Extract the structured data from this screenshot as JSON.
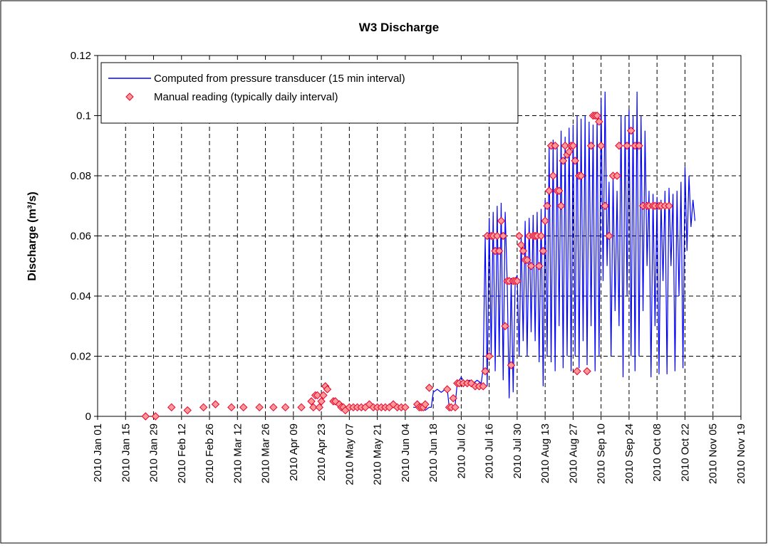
{
  "chart_data": {
    "type": "line",
    "title": "W3 Discharge",
    "y_label": "Discharge (m³/s)",
    "xlim": [
      "2010-01-01",
      "2010-11-19"
    ],
    "xticks": [
      {
        "value": "2010-01-01",
        "label": "2010 Jan 01"
      },
      {
        "value": "2010-01-15",
        "label": "2010 Jan 15"
      },
      {
        "value": "2010-01-29",
        "label": "2010 Jan 29"
      },
      {
        "value": "2010-02-12",
        "label": "2010 Feb 12"
      },
      {
        "value": "2010-02-26",
        "label": "2010 Feb 26"
      },
      {
        "value": "2010-03-12",
        "label": "2010 Mar 12"
      },
      {
        "value": "2010-03-26",
        "label": "2010 Mar 26"
      },
      {
        "value": "2010-04-09",
        "label": "2010 Apr 09"
      },
      {
        "value": "2010-04-23",
        "label": "2010 Apr 23"
      },
      {
        "value": "2010-05-07",
        "label": "2010 May 07"
      },
      {
        "value": "2010-05-21",
        "label": "2010 May 21"
      },
      {
        "value": "2010-06-04",
        "label": "2010 Jun 04"
      },
      {
        "value": "2010-06-18",
        "label": "2010 Jun 18"
      },
      {
        "value": "2010-07-02",
        "label": "2010 Jul 02"
      },
      {
        "value": "2010-07-16",
        "label": "2010 Jul 16"
      },
      {
        "value": "2010-07-30",
        "label": "2010 Jul 30"
      },
      {
        "value": "2010-08-13",
        "label": "2010 Aug 13"
      },
      {
        "value": "2010-08-27",
        "label": "2010 Aug 27"
      },
      {
        "value": "2010-09-10",
        "label": "2010 Sep 10"
      },
      {
        "value": "2010-09-24",
        "label": "2010 Sep 24"
      },
      {
        "value": "2010-10-08",
        "label": "2010 Oct 08"
      },
      {
        "value": "2010-10-22",
        "label": "2010 Oct 22"
      },
      {
        "value": "2010-11-05",
        "label": "2010 Nov 05"
      },
      {
        "value": "2010-11-19",
        "label": "2010 Nov 19"
      }
    ],
    "ylim": [
      0,
      0.12
    ],
    "yticks": [
      0,
      0.02,
      0.04,
      0.06,
      0.08,
      0.1,
      0.12
    ],
    "grid": true,
    "legend": "top-left",
    "series": [
      {
        "name": "Computed from pressure transducer (15 min interval)",
        "mode": "line",
        "color": "#0000ff",
        "x": [
          "2010-06-08",
          "2010-06-10",
          "2010-06-12",
          "2010-06-14",
          "2010-06-16",
          "2010-06-17",
          "2010-06-18",
          "2010-06-20",
          "2010-06-22",
          "2010-06-24",
          "2010-06-25",
          "2010-06-26",
          "2010-06-28",
          "2010-06-29",
          "2010-06-30",
          "2010-07-02",
          "2010-07-04",
          "2010-07-06",
          "2010-07-08",
          "2010-07-10",
          "2010-07-12",
          "2010-07-13",
          "2010-07-14",
          "2010-07-15",
          "2010-07-16",
          "2010-07-17",
          "2010-07-18",
          "2010-07-19",
          "2010-07-20",
          "2010-07-21",
          "2010-07-22",
          "2010-07-23",
          "2010-07-24",
          "2010-07-25",
          "2010-07-26",
          "2010-07-27",
          "2010-07-28",
          "2010-07-29",
          "2010-07-30",
          "2010-07-31",
          "2010-08-01",
          "2010-08-02",
          "2010-08-03",
          "2010-08-04",
          "2010-08-05",
          "2010-08-06",
          "2010-08-07",
          "2010-08-08",
          "2010-08-09",
          "2010-08-10",
          "2010-08-11",
          "2010-08-12",
          "2010-08-13",
          "2010-08-14",
          "2010-08-15",
          "2010-08-16",
          "2010-08-17",
          "2010-08-18",
          "2010-08-19",
          "2010-08-20",
          "2010-08-21",
          "2010-08-22",
          "2010-08-23",
          "2010-08-24",
          "2010-08-25",
          "2010-08-26",
          "2010-08-27",
          "2010-08-28",
          "2010-08-29",
          "2010-08-30",
          "2010-08-31",
          "2010-09-01",
          "2010-09-02",
          "2010-09-03",
          "2010-09-04",
          "2010-09-05",
          "2010-09-06",
          "2010-09-07",
          "2010-09-08",
          "2010-09-09",
          "2010-09-10",
          "2010-09-11",
          "2010-09-12",
          "2010-09-13",
          "2010-09-14",
          "2010-09-15",
          "2010-09-16",
          "2010-09-17",
          "2010-09-18",
          "2010-09-19",
          "2010-09-20",
          "2010-09-21",
          "2010-09-22",
          "2010-09-23",
          "2010-09-24",
          "2010-09-25",
          "2010-09-26",
          "2010-09-27",
          "2010-09-28",
          "2010-09-29",
          "2010-09-30",
          "2010-10-01",
          "2010-10-02",
          "2010-10-03",
          "2010-10-04",
          "2010-10-05",
          "2010-10-06",
          "2010-10-07",
          "2010-10-08",
          "2010-10-09",
          "2010-10-10",
          "2010-10-11",
          "2010-10-12",
          "2010-10-13",
          "2010-10-14",
          "2010-10-15",
          "2010-10-16",
          "2010-10-17",
          "2010-10-18",
          "2010-10-19",
          "2010-10-20",
          "2010-10-21",
          "2010-10-22",
          "2010-10-23",
          "2010-10-24",
          "2010-10-25",
          "2010-10-26",
          "2010-10-27"
        ],
        "values": [
          0.003,
          0.003,
          0.003,
          0.002,
          0.003,
          0.003,
          0.008,
          0.009,
          0.008,
          0.009,
          0.009,
          0.003,
          0.003,
          0.004,
          0.011,
          0.013,
          0.011,
          0.012,
          0.011,
          0.012,
          0.011,
          0.016,
          0.06,
          0.01,
          0.066,
          0.02,
          0.068,
          0.015,
          0.07,
          0.02,
          0.071,
          0.012,
          0.068,
          0.045,
          0.006,
          0.046,
          0.008,
          0.045,
          0.047,
          0.02,
          0.06,
          0.025,
          0.065,
          0.02,
          0.066,
          0.028,
          0.067,
          0.025,
          0.068,
          0.018,
          0.069,
          0.01,
          0.072,
          0.02,
          0.09,
          0.018,
          0.092,
          0.015,
          0.09,
          0.03,
          0.095,
          0.016,
          0.093,
          0.02,
          0.096,
          0.015,
          0.097,
          0.02,
          0.1,
          0.016,
          0.099,
          0.025,
          0.1,
          0.017,
          0.098,
          0.03,
          0.097,
          0.015,
          0.1,
          0.02,
          0.106,
          0.045,
          0.108,
          0.05,
          0.078,
          0.02,
          0.08,
          0.035,
          0.075,
          0.03,
          0.1,
          0.013,
          0.1,
          0.04,
          0.102,
          0.02,
          0.1,
          0.015,
          0.108,
          0.02,
          0.1,
          0.035,
          0.095,
          0.05,
          0.075,
          0.013,
          0.074,
          0.03,
          0.073,
          0.014,
          0.072,
          0.045,
          0.075,
          0.014,
          0.076,
          0.05,
          0.074,
          0.015,
          0.075,
          0.04,
          0.078,
          0.016,
          0.083,
          0.055,
          0.08,
          0.063,
          0.072,
          0.065
        ]
      },
      {
        "name": "Manual reading (typically daily interval)",
        "mode": "markers",
        "color": "#ff9999",
        "edge_color": "#e8002a",
        "x": [
          "2010-01-25",
          "2010-01-30",
          "2010-02-07",
          "2010-02-15",
          "2010-02-23",
          "2010-03-01",
          "2010-03-09",
          "2010-03-15",
          "2010-03-23",
          "2010-03-30",
          "2010-04-05",
          "2010-04-13",
          "2010-04-18",
          "2010-04-19",
          "2010-04-20",
          "2010-04-21",
          "2010-04-22",
          "2010-04-23",
          "2010-04-24",
          "2010-04-25",
          "2010-04-26",
          "2010-04-29",
          "2010-04-30",
          "2010-05-02",
          "2010-05-03",
          "2010-05-04",
          "2010-05-05",
          "2010-05-07",
          "2010-05-09",
          "2010-05-11",
          "2010-05-13",
          "2010-05-15",
          "2010-05-17",
          "2010-05-19",
          "2010-05-21",
          "2010-05-23",
          "2010-05-25",
          "2010-05-27",
          "2010-05-29",
          "2010-05-31",
          "2010-06-02",
          "2010-06-04",
          "2010-06-10",
          "2010-06-11",
          "2010-06-12",
          "2010-06-13",
          "2010-06-14",
          "2010-06-16",
          "2010-06-25",
          "2010-06-26",
          "2010-06-27",
          "2010-06-28",
          "2010-06-29",
          "2010-06-30",
          "2010-07-01",
          "2010-07-03",
          "2010-07-05",
          "2010-07-07",
          "2010-07-09",
          "2010-07-11",
          "2010-07-13",
          "2010-07-14",
          "2010-07-15",
          "2010-07-16",
          "2010-07-17",
          "2010-07-18",
          "2010-07-19",
          "2010-07-20",
          "2010-07-21",
          "2010-07-22",
          "2010-07-23",
          "2010-07-24",
          "2010-07-25",
          "2010-07-26",
          "2010-07-27",
          "2010-07-28",
          "2010-07-29",
          "2010-07-30",
          "2010-07-31",
          "2010-08-01",
          "2010-08-02",
          "2010-08-03",
          "2010-08-04",
          "2010-08-05",
          "2010-08-06",
          "2010-08-07",
          "2010-08-08",
          "2010-08-09",
          "2010-08-10",
          "2010-08-11",
          "2010-08-12",
          "2010-08-13",
          "2010-08-14",
          "2010-08-15",
          "2010-08-16",
          "2010-08-17",
          "2010-08-18",
          "2010-08-19",
          "2010-08-20",
          "2010-08-21",
          "2010-08-22",
          "2010-08-23",
          "2010-08-24",
          "2010-08-25",
          "2010-08-26",
          "2010-08-27",
          "2010-08-28",
          "2010-08-29",
          "2010-08-30",
          "2010-08-31",
          "2010-09-03",
          "2010-09-05",
          "2010-09-06",
          "2010-09-07",
          "2010-09-08",
          "2010-09-09",
          "2010-09-10",
          "2010-09-12",
          "2010-09-14",
          "2010-09-16",
          "2010-09-18",
          "2010-09-19",
          "2010-09-23",
          "2010-09-25",
          "2010-09-27",
          "2010-09-29",
          "2010-10-01",
          "2010-10-03",
          "2010-10-04",
          "2010-10-06",
          "2010-10-07",
          "2010-10-09",
          "2010-10-10",
          "2010-10-12",
          "2010-10-14"
        ],
        "values": [
          0,
          0,
          0.003,
          0.002,
          0.003,
          0.004,
          0.003,
          0.003,
          0.003,
          0.003,
          0.003,
          0.003,
          0.005,
          0.003,
          0.007,
          0.007,
          0.003,
          0.005,
          0.007,
          0.01,
          0.009,
          0.005,
          0.005,
          0.004,
          0.003,
          0.003,
          0.002,
          0.003,
          0.003,
          0.003,
          0.003,
          0.003,
          0.004,
          0.003,
          0.003,
          0.003,
          0.003,
          0.003,
          0.004,
          0.003,
          0.003,
          0.003,
          0.004,
          0.003,
          0.003,
          0.003,
          0.004,
          0.0095,
          0.009,
          0.003,
          0.003,
          0.006,
          0.003,
          0.011,
          0.011,
          0.011,
          0.011,
          0.011,
          0.01,
          0.01,
          0.01,
          0.015,
          0.06,
          0.02,
          0.06,
          0.06,
          0.055,
          0.06,
          0.055,
          0.065,
          0.06,
          0.03,
          0.045,
          0.045,
          0.017,
          0.045,
          0.045,
          0.045,
          0.06,
          0.057,
          0.055,
          0.052,
          0.052,
          0.06,
          0.05,
          0.06,
          0.06,
          0.06,
          0.05,
          0.06,
          0.055,
          0.065,
          0.07,
          0.075,
          0.09,
          0.08,
          0.09,
          0.075,
          0.075,
          0.07,
          0.085,
          0.09,
          0.087,
          0.088,
          0.09,
          0.09,
          0.085,
          0.015,
          0.08,
          0.08,
          0.015,
          0.09,
          0.1,
          0.1,
          0.1,
          0.098,
          0.09,
          0.07,
          0.06,
          0.08,
          0.08,
          0.09,
          0.09,
          0.095,
          0.09,
          0.09,
          0.07,
          0.07,
          0.07,
          0.07,
          0.07,
          0.07,
          0.07,
          0.07,
          0.07
        ]
      }
    ]
  }
}
